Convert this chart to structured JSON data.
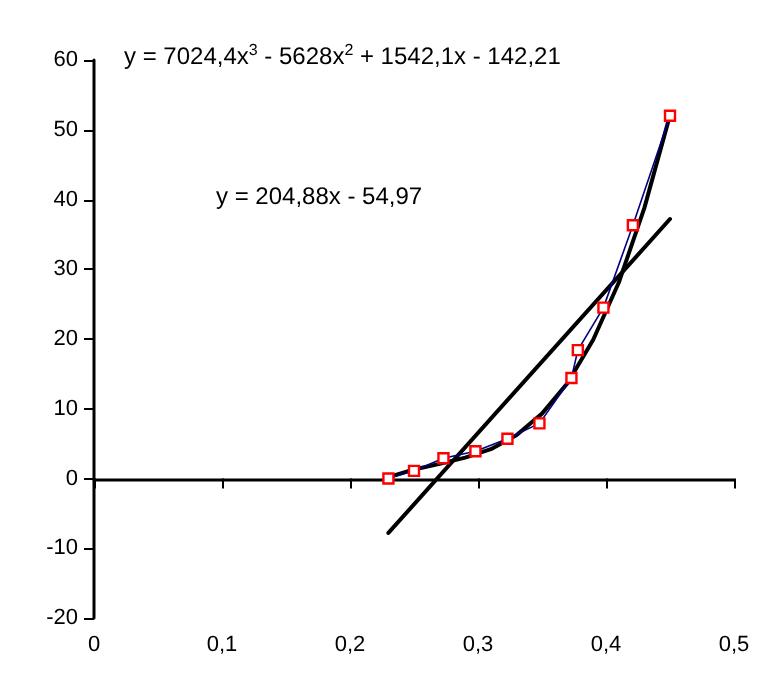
{
  "chart_data": {
    "type": "line",
    "xlim": [
      0,
      0.5
    ],
    "ylim": [
      -20,
      60
    ],
    "xticks": [
      {
        "value": 0,
        "label": "0"
      },
      {
        "value": 0.1,
        "label": "0,1"
      },
      {
        "value": 0.2,
        "label": "0,2"
      },
      {
        "value": 0.3,
        "label": "0,3"
      },
      {
        "value": 0.4,
        "label": "0,4"
      },
      {
        "value": 0.5,
        "label": "0,5"
      }
    ],
    "yticks": [
      -20,
      -10,
      0,
      10,
      20,
      30,
      40,
      50,
      60
    ],
    "annotations": [
      "y = 7024,4x$^{3}$ - 5628x$^{2}$ + 1542,1x - 142,21",
      "y = 204,88x - 54,97"
    ],
    "series": [
      {
        "color": "#ff0000",
        "marker": "square",
        "x": [
          0.23,
          0.25,
          0.273,
          0.298,
          0.323,
          0.348,
          0.373,
          0.378,
          0.398,
          0.421,
          0.45
        ],
        "values": [
          0,
          1.1,
          2.9,
          3.9,
          5.7,
          7.9,
          14.4,
          18.4,
          24.5,
          36.3,
          52
        ]
      },
      {
        "color": "#000000",
        "marker": "none",
        "x": [
          0.23,
          0.25,
          0.27,
          0.29,
          0.31,
          0.33,
          0.35,
          0.37,
          0.39,
          0.41,
          0.43,
          0.45
        ],
        "values": [
          0.2,
          1.3,
          2.1,
          3,
          4.2,
          6.2,
          9.3,
          13.7,
          19.9,
          28.1,
          38.8,
          52.1
        ]
      },
      {
        "color": "#000000",
        "marker": "none",
        "x": [
          0.23,
          0.45
        ],
        "values": [
          -7.8,
          37.2
        ]
      }
    ]
  }
}
